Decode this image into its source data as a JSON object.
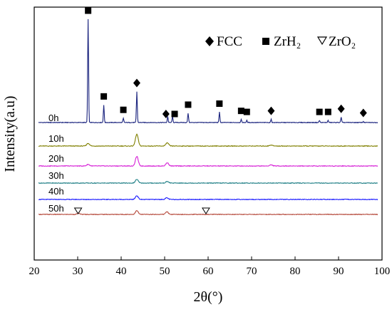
{
  "chart_data": {
    "type": "line",
    "title": "",
    "xlabel": "2θ(°)",
    "ylabel": "Intensity(a.u)",
    "xlim": [
      20,
      100
    ],
    "xticks": [
      20,
      30,
      40,
      50,
      60,
      70,
      80,
      90,
      100
    ],
    "legend": {
      "placement": "top-right",
      "entries": [
        {
          "symbol": "◆",
          "label": "FCC"
        },
        {
          "symbol": "■",
          "label": "ZrH₂"
        },
        {
          "symbol": "▽",
          "label": "ZrO₂"
        }
      ]
    },
    "series": [
      {
        "name": "0h",
        "color": "#1a237e",
        "peaks": [
          [
            32.4,
            1.0
          ],
          [
            36.0,
            0.17
          ],
          [
            40.5,
            0.04
          ],
          [
            43.6,
            0.3
          ],
          [
            50.7,
            0.06
          ],
          [
            51.8,
            0.06
          ],
          [
            55.4,
            0.09
          ],
          [
            62.6,
            0.1
          ],
          [
            67.6,
            0.03
          ],
          [
            68.9,
            0.02
          ],
          [
            74.5,
            0.03
          ],
          [
            85.6,
            0.02
          ],
          [
            87.6,
            0.02
          ],
          [
            90.6,
            0.05
          ],
          [
            95.7,
            0.01
          ]
        ]
      },
      {
        "name": "10h",
        "color": "#808000",
        "peaks": [
          [
            32.4,
            0.025
          ],
          [
            43.6,
            0.11
          ],
          [
            50.6,
            0.03
          ],
          [
            74.5,
            0.01
          ]
        ]
      },
      {
        "name": "20h",
        "color": "#d61fd6",
        "peaks": [
          [
            32.4,
            0.015
          ],
          [
            43.6,
            0.09
          ],
          [
            50.6,
            0.03
          ],
          [
            74.5,
            0.01
          ]
        ]
      },
      {
        "name": "30h",
        "color": "#1f7f86",
        "peaks": [
          [
            43.6,
            0.035
          ],
          [
            50.6,
            0.015
          ]
        ]
      },
      {
        "name": "40h",
        "color": "#1a1aff",
        "peaks": [
          [
            43.6,
            0.035
          ],
          [
            50.5,
            0.015
          ]
        ]
      },
      {
        "name": "50h",
        "color": "#b5483a",
        "peaks": [
          [
            30.2,
            0.01
          ],
          [
            43.6,
            0.035
          ],
          [
            50.5,
            0.025
          ]
        ]
      }
    ],
    "annotations": {
      "fcc_markers_0h": [
        43.6,
        50.3,
        74.5,
        90.6,
        95.7
      ],
      "zrh2_markers_0h": [
        32.4,
        36.0,
        40.5,
        52.3,
        55.4,
        62.6,
        67.6,
        68.9,
        85.6,
        87.6
      ],
      "zro2_markers_40h": [
        30.1,
        59.5
      ]
    }
  }
}
